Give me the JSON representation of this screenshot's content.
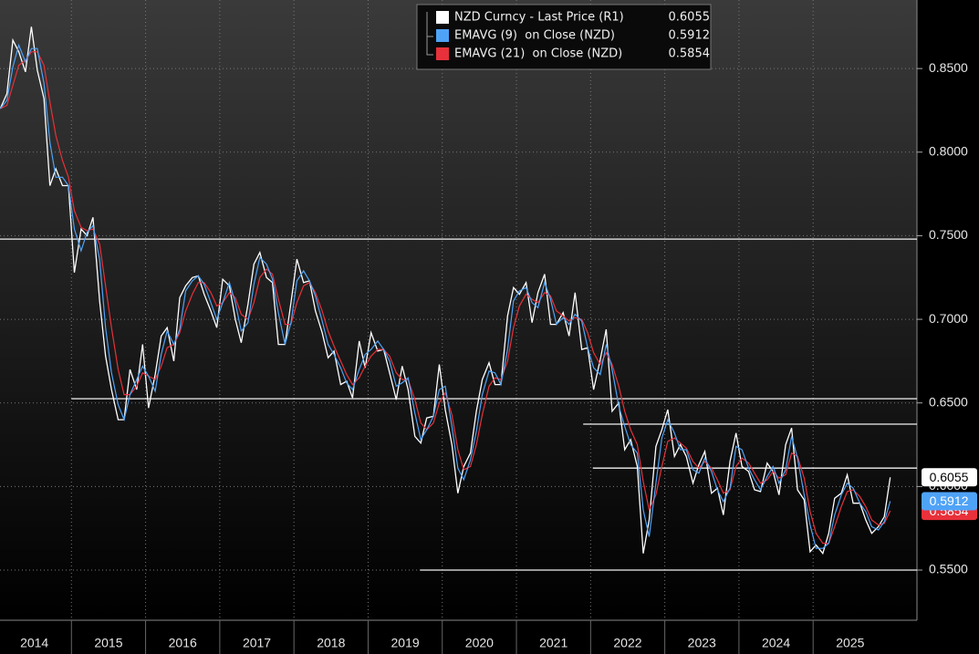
{
  "chart_data": {
    "type": "line",
    "x": [
      2014.04,
      2014.13,
      2014.21,
      2014.29,
      2014.38,
      2014.46,
      2014.54,
      2014.63,
      2014.71,
      2014.79,
      2014.88,
      2014.96,
      2015.04,
      2015.13,
      2015.21,
      2015.29,
      2015.38,
      2015.46,
      2015.54,
      2015.63,
      2015.71,
      2015.79,
      2015.88,
      2015.96,
      2016.04,
      2016.13,
      2016.21,
      2016.29,
      2016.38,
      2016.46,
      2016.54,
      2016.63,
      2016.71,
      2016.79,
      2016.88,
      2016.96,
      2017.04,
      2017.13,
      2017.21,
      2017.29,
      2017.38,
      2017.46,
      2017.54,
      2017.63,
      2017.71,
      2017.79,
      2017.88,
      2017.96,
      2018.04,
      2018.13,
      2018.21,
      2018.29,
      2018.38,
      2018.46,
      2018.54,
      2018.63,
      2018.71,
      2018.79,
      2018.88,
      2018.96,
      2019.04,
      2019.13,
      2019.21,
      2019.29,
      2019.38,
      2019.46,
      2019.54,
      2019.63,
      2019.71,
      2019.79,
      2019.88,
      2019.96,
      2020.04,
      2020.13,
      2020.21,
      2020.29,
      2020.38,
      2020.46,
      2020.54,
      2020.63,
      2020.71,
      2020.79,
      2020.88,
      2020.96,
      2021.04,
      2021.13,
      2021.21,
      2021.29,
      2021.38,
      2021.46,
      2021.54,
      2021.63,
      2021.71,
      2021.79,
      2021.88,
      2021.96,
      2022.04,
      2022.13,
      2022.21,
      2022.29,
      2022.38,
      2022.46,
      2022.54,
      2022.63,
      2022.71,
      2022.79,
      2022.88,
      2022.96,
      2023.04,
      2023.13,
      2023.21,
      2023.29,
      2023.38,
      2023.46,
      2023.54,
      2023.63,
      2023.71,
      2023.79,
      2023.88,
      2023.96,
      2024.04,
      2024.13,
      2024.21,
      2024.29,
      2024.38,
      2024.46,
      2024.54,
      2024.63,
      2024.71,
      2024.79,
      2024.88,
      2024.96,
      2025.04,
      2025.13,
      2025.21,
      2025.29,
      2025.38,
      2025.46,
      2025.54,
      2025.63,
      2025.71,
      2025.79,
      2025.88,
      2025.96,
      2026.04
    ],
    "series": [
      {
        "name": "NZD Curncy - Last Price (R1)",
        "color": "#ffffff",
        "values": [
          0.826,
          0.835,
          0.867,
          0.86,
          0.848,
          0.875,
          0.849,
          0.832,
          0.78,
          0.79,
          0.78,
          0.78,
          0.728,
          0.754,
          0.75,
          0.761,
          0.711,
          0.678,
          0.658,
          0.64,
          0.64,
          0.67,
          0.658,
          0.685,
          0.647,
          0.667,
          0.69,
          0.695,
          0.675,
          0.713,
          0.72,
          0.725,
          0.726,
          0.715,
          0.705,
          0.695,
          0.724,
          0.72,
          0.7,
          0.686,
          0.709,
          0.733,
          0.74,
          0.725,
          0.722,
          0.685,
          0.685,
          0.71,
          0.736,
          0.722,
          0.723,
          0.705,
          0.692,
          0.677,
          0.681,
          0.661,
          0.663,
          0.653,
          0.687,
          0.671,
          0.692,
          0.681,
          0.682,
          0.668,
          0.652,
          0.672,
          0.658,
          0.63,
          0.626,
          0.641,
          0.642,
          0.673,
          0.646,
          0.625,
          0.596,
          0.612,
          0.62,
          0.645,
          0.664,
          0.674,
          0.661,
          0.661,
          0.702,
          0.719,
          0.715,
          0.722,
          0.698,
          0.716,
          0.727,
          0.697,
          0.697,
          0.704,
          0.69,
          0.716,
          0.682,
          0.683,
          0.658,
          0.676,
          0.694,
          0.645,
          0.65,
          0.622,
          0.628,
          0.612,
          0.56,
          0.58,
          0.624,
          0.634,
          0.646,
          0.618,
          0.625,
          0.618,
          0.602,
          0.613,
          0.621,
          0.596,
          0.599,
          0.583,
          0.615,
          0.632,
          0.612,
          0.609,
          0.598,
          0.597,
          0.614,
          0.609,
          0.595,
          0.625,
          0.635,
          0.598,
          0.592,
          0.561,
          0.565,
          0.56,
          0.572,
          0.593,
          0.596,
          0.607,
          0.59,
          0.59,
          0.58,
          0.572,
          0.576,
          0.582,
          0.6055
        ]
      },
      {
        "name": "EMAVG (9)  on Close (NZD)",
        "color": "#4fa3f7",
        "values": [
          0.826,
          0.831,
          0.851,
          0.864,
          0.854,
          0.862,
          0.862,
          0.841,
          0.806,
          0.785,
          0.785,
          0.78,
          0.754,
          0.741,
          0.752,
          0.756,
          0.736,
          0.695,
          0.668,
          0.649,
          0.64,
          0.655,
          0.664,
          0.672,
          0.666,
          0.657,
          0.679,
          0.693,
          0.685,
          0.694,
          0.717,
          0.723,
          0.726,
          0.721,
          0.71,
          0.7,
          0.71,
          0.722,
          0.71,
          0.693,
          0.698,
          0.721,
          0.737,
          0.733,
          0.724,
          0.704,
          0.685,
          0.698,
          0.723,
          0.729,
          0.723,
          0.714,
          0.699,
          0.685,
          0.679,
          0.671,
          0.662,
          0.658,
          0.67,
          0.679,
          0.682,
          0.687,
          0.682,
          0.675,
          0.66,
          0.662,
          0.665,
          0.644,
          0.628,
          0.634,
          0.642,
          0.658,
          0.66,
          0.636,
          0.611,
          0.604,
          0.616,
          0.633,
          0.655,
          0.669,
          0.668,
          0.661,
          0.682,
          0.711,
          0.717,
          0.719,
          0.71,
          0.707,
          0.722,
          0.712,
          0.697,
          0.701,
          0.697,
          0.703,
          0.699,
          0.683,
          0.671,
          0.667,
          0.685,
          0.67,
          0.648,
          0.636,
          0.625,
          0.62,
          0.586,
          0.57,
          0.602,
          0.629,
          0.64,
          0.632,
          0.622,
          0.622,
          0.61,
          0.608,
          0.617,
          0.609,
          0.598,
          0.591,
          0.599,
          0.624,
          0.622,
          0.611,
          0.604,
          0.598,
          0.606,
          0.612,
          0.602,
          0.61,
          0.63,
          0.617,
          0.595,
          0.577,
          0.563,
          0.563,
          0.566,
          0.583,
          0.595,
          0.602,
          0.599,
          0.59,
          0.585,
          0.576,
          0.574,
          0.579,
          0.5912
        ]
      },
      {
        "name": "EMAVG (21)  on Close (NZD)",
        "color": "#e8313a",
        "values": [
          0.826,
          0.828,
          0.84,
          0.852,
          0.855,
          0.86,
          0.86,
          0.852,
          0.83,
          0.81,
          0.795,
          0.785,
          0.765,
          0.755,
          0.753,
          0.754,
          0.745,
          0.72,
          0.695,
          0.67,
          0.655,
          0.655,
          0.66,
          0.668,
          0.666,
          0.664,
          0.672,
          0.683,
          0.685,
          0.692,
          0.705,
          0.715,
          0.722,
          0.722,
          0.716,
          0.708,
          0.71,
          0.716,
          0.713,
          0.703,
          0.7,
          0.71,
          0.725,
          0.73,
          0.727,
          0.712,
          0.697,
          0.697,
          0.71,
          0.72,
          0.722,
          0.716,
          0.705,
          0.693,
          0.684,
          0.675,
          0.667,
          0.661,
          0.665,
          0.672,
          0.678,
          0.682,
          0.682,
          0.678,
          0.668,
          0.664,
          0.664,
          0.652,
          0.638,
          0.634,
          0.638,
          0.65,
          0.656,
          0.643,
          0.622,
          0.61,
          0.612,
          0.625,
          0.643,
          0.66,
          0.665,
          0.664,
          0.675,
          0.695,
          0.708,
          0.715,
          0.712,
          0.71,
          0.716,
          0.714,
          0.705,
          0.702,
          0.699,
          0.701,
          0.7,
          0.692,
          0.68,
          0.673,
          0.68,
          0.673,
          0.66,
          0.645,
          0.634,
          0.625,
          0.603,
          0.586,
          0.595,
          0.612,
          0.627,
          0.629,
          0.626,
          0.623,
          0.615,
          0.611,
          0.615,
          0.611,
          0.604,
          0.596,
          0.598,
          0.612,
          0.617,
          0.614,
          0.608,
          0.602,
          0.604,
          0.609,
          0.605,
          0.607,
          0.62,
          0.618,
          0.605,
          0.585,
          0.572,
          0.566,
          0.566,
          0.576,
          0.588,
          0.597,
          0.598,
          0.594,
          0.588,
          0.58,
          0.577,
          0.578,
          0.5854
        ]
      }
    ],
    "xlim": [
      2014.0,
      2026.4
    ],
    "xticks": [
      2014,
      2015,
      2016,
      2017,
      2018,
      2019,
      2020,
      2021,
      2022,
      2023,
      2024,
      2025
    ],
    "ylim": [
      0.52,
      0.891
    ],
    "yticks": [
      {
        "value": 0.55,
        "label": "0.5500"
      },
      {
        "value": 0.6,
        "label": "0.6000"
      },
      {
        "value": 0.65,
        "label": "0.6500"
      },
      {
        "value": 0.7,
        "label": "0.7000"
      },
      {
        "value": 0.75,
        "label": "0.7500"
      },
      {
        "value": 0.8,
        "label": "0.8000"
      },
      {
        "value": 0.85,
        "label": "0.8500"
      }
    ],
    "reference_lines": [
      {
        "value": 0.748,
        "from": 2014.0
      },
      {
        "value": 0.6525,
        "from": 2015.0
      },
      {
        "value": 0.6373,
        "from": 2021.9
      },
      {
        "value": 0.611,
        "from": 2022.03
      },
      {
        "value": 0.55,
        "from": 2019.7
      }
    ],
    "grid": true
  }
}
